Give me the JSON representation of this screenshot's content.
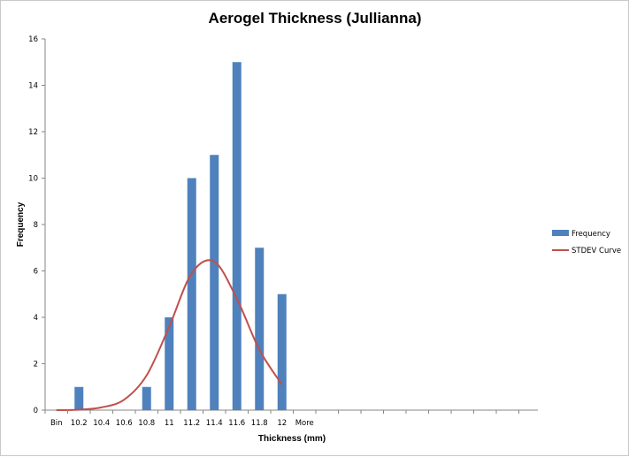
{
  "chart_data": {
    "type": "bar",
    "title": "Aerogel Thickness (Jullianna)",
    "xlabel": "Thickness  (mm)",
    "ylabel": "Frequency",
    "categories": [
      "Bin",
      "10.2",
      "10.4",
      "10.6",
      "10.8",
      "11",
      "11.2",
      "11.4",
      "11.6",
      "11.8",
      "12",
      "More"
    ],
    "ylim": [
      0,
      16
    ],
    "ytick_step": 2,
    "yticks": [
      "0",
      "2",
      "4",
      "6",
      "8",
      "10",
      "12",
      "14",
      "16"
    ],
    "grid": false,
    "legend_position": "right",
    "series": [
      {
        "name": "Frequency",
        "type": "bar",
        "color": "#4f81bd",
        "values": [
          0,
          1,
          0,
          0,
          1,
          4,
          10,
          11,
          15,
          7,
          5,
          0
        ]
      },
      {
        "name": "STDEV Curve",
        "type": "line",
        "color": "#c0504d",
        "smooth": true,
        "x": [
          10.0,
          10.2,
          10.4,
          10.6,
          10.8,
          11.0,
          11.2,
          11.4,
          11.6,
          11.8,
          12.0
        ],
        "values": [
          0.0,
          0.02,
          0.12,
          0.45,
          1.5,
          3.6,
          5.9,
          6.4,
          4.8,
          2.6,
          1.1
        ]
      }
    ]
  }
}
